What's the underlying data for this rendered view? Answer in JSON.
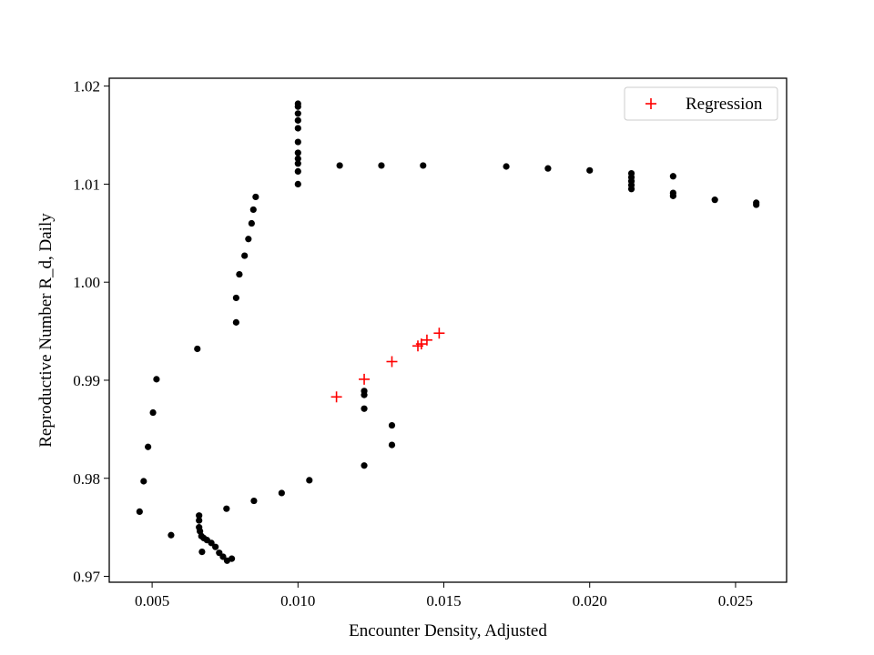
{
  "chart_data": {
    "type": "scatter",
    "title": "",
    "xlabel": "Encounter Density, Adjusted",
    "ylabel": "Reproductive Number R_d, Daily",
    "xlim": [
      0.00353,
      0.02675
    ],
    "ylim": [
      0.9694,
      1.0208
    ],
    "xticks": [
      0.005,
      0.01,
      0.015,
      0.02,
      0.025
    ],
    "xtick_labels": [
      "0.005",
      "0.010",
      "0.015",
      "0.020",
      "0.025"
    ],
    "yticks": [
      0.97,
      0.98,
      0.99,
      1.0,
      1.01,
      1.02
    ],
    "ytick_labels": [
      "0.97",
      "0.98",
      "0.99",
      "1.00",
      "1.01",
      "1.02"
    ],
    "grid": false,
    "legend": {
      "location": "top-right",
      "entries": [
        "Regression"
      ]
    },
    "series": [
      {
        "marker": "dot",
        "color": "#000000",
        "points": [
          [
            0.01,
            1.0182
          ],
          [
            0.01,
            1.0179
          ],
          [
            0.01,
            1.0172
          ],
          [
            0.01,
            1.0165
          ],
          [
            0.01,
            1.0157
          ],
          [
            0.01,
            1.0143
          ],
          [
            0.01,
            1.0132
          ],
          [
            0.01,
            1.0126
          ],
          [
            0.01,
            1.0121
          ],
          [
            0.01,
            1.0113
          ],
          [
            0.01,
            1.01
          ],
          [
            0.01143,
            1.0119
          ],
          [
            0.01286,
            1.0119
          ],
          [
            0.01429,
            1.0119
          ],
          [
            0.01714,
            1.0118
          ],
          [
            0.01857,
            1.0116
          ],
          [
            0.02,
            1.0114
          ],
          [
            0.02143,
            1.0111
          ],
          [
            0.02143,
            1.0107
          ],
          [
            0.02143,
            1.0103
          ],
          [
            0.02143,
            1.0099
          ],
          [
            0.02143,
            1.0095
          ],
          [
            0.02286,
            1.0108
          ],
          [
            0.02286,
            1.0091
          ],
          [
            0.02286,
            1.0088
          ],
          [
            0.02429,
            1.0084
          ],
          [
            0.02571,
            1.0081
          ],
          [
            0.02571,
            1.0079
          ],
          [
            0.00855,
            1.0087
          ],
          [
            0.00847,
            1.0074
          ],
          [
            0.00841,
            1.006
          ],
          [
            0.0083,
            1.0044
          ],
          [
            0.00817,
            1.0027
          ],
          [
            0.00799,
            1.0008
          ],
          [
            0.00788,
            0.9984
          ],
          [
            0.00788,
            0.9959
          ],
          [
            0.00655,
            0.9932
          ],
          [
            0.00515,
            0.9901
          ],
          [
            0.00503,
            0.9867
          ],
          [
            0.00486,
            0.9832
          ],
          [
            0.00471,
            0.9797
          ],
          [
            0.00457,
            0.9766
          ],
          [
            0.00565,
            0.9742
          ],
          [
            0.00661,
            0.9762
          ],
          [
            0.00661,
            0.9757
          ],
          [
            0.00661,
            0.975
          ],
          [
            0.00664,
            0.9746
          ],
          [
            0.00669,
            0.9741
          ],
          [
            0.00677,
            0.9739
          ],
          [
            0.00688,
            0.9737
          ],
          [
            0.00703,
            0.9734
          ],
          [
            0.00717,
            0.973
          ],
          [
            0.0073,
            0.9724
          ],
          [
            0.00743,
            0.972
          ],
          [
            0.00757,
            0.9716
          ],
          [
            0.00773,
            0.9718
          ],
          [
            0.00671,
            0.9725
          ],
          [
            0.00755,
            0.9769
          ],
          [
            0.00849,
            0.9777
          ],
          [
            0.00944,
            0.9785
          ],
          [
            0.01039,
            0.9798
          ],
          [
            0.01227,
            0.9813
          ],
          [
            0.01322,
            0.9834
          ],
          [
            0.01322,
            0.9854
          ],
          [
            0.01227,
            0.9871
          ],
          [
            0.01227,
            0.9885
          ],
          [
            0.01227,
            0.9889
          ]
        ]
      },
      {
        "name": "Regression",
        "marker": "plus",
        "color": "#ff0000",
        "points": [
          [
            0.01132,
            0.9883
          ],
          [
            0.01227,
            0.9901
          ],
          [
            0.01322,
            0.9919
          ],
          [
            0.01411,
            0.9935
          ],
          [
            0.01423,
            0.9937
          ],
          [
            0.01442,
            0.9941
          ],
          [
            0.01484,
            0.9948
          ]
        ]
      }
    ]
  }
}
